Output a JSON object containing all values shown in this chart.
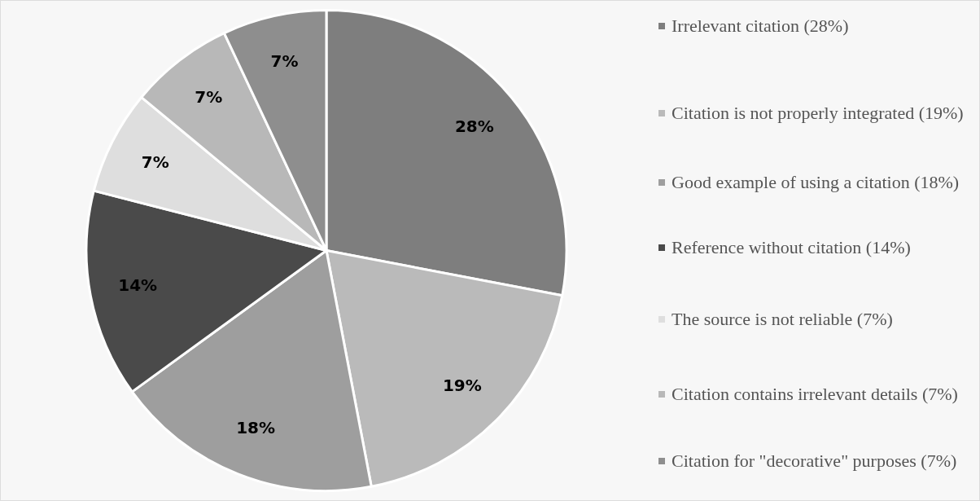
{
  "chart_data": {
    "type": "pie",
    "categories": [
      "Irrelevant citation (28%)",
      "Citation is not properly integrated (19%)",
      "Good example of using a citation (18%)",
      "Reference without citation (14%)",
      "The source is not reliable (7%)",
      "Citation contains irrelevant details (7%)",
      "Citation for \"decorative\" purposes (7%)"
    ],
    "values": [
      28,
      19,
      18,
      14,
      7,
      7,
      7
    ],
    "value_labels": [
      "28%",
      "19%",
      "18%",
      "14%",
      "7%",
      "7%",
      "7%"
    ],
    "colors": [
      "#7e7e7e",
      "#bababa",
      "#9e9e9e",
      "#4a4a4a",
      "#dedede",
      "#b8b8b8",
      "#8e8e8e"
    ],
    "legend": "right"
  }
}
